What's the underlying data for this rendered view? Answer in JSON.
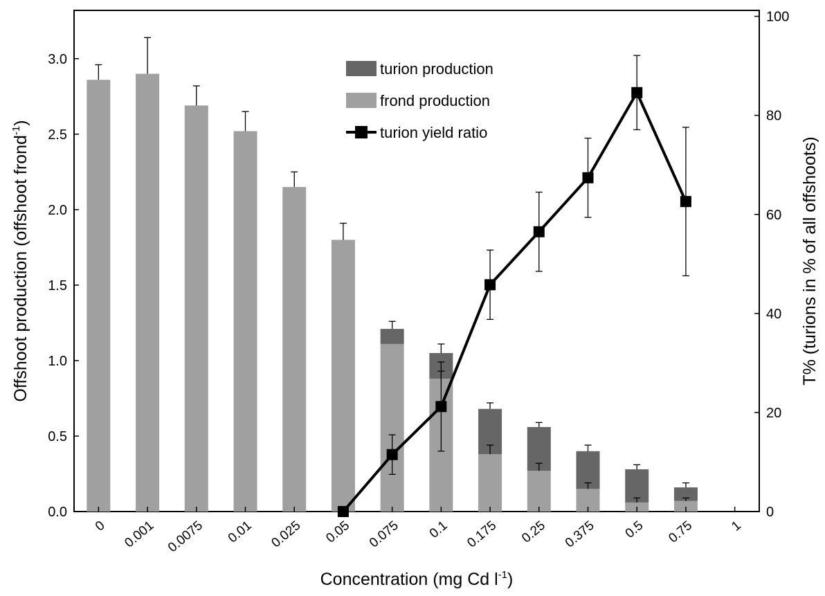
{
  "chart_data": {
    "type": "bar",
    "categories": [
      "0",
      "0.001",
      "0.0075",
      "0.01",
      "0.025",
      "0.05",
      "0.075",
      "0.1",
      "0.175",
      "0.25",
      "0.375",
      "0.5",
      "0.75",
      "1"
    ],
    "xlabel": "Concentration (mg Cd l",
    "xlabel_sup": "-1",
    "xlabel_end": ")",
    "ylabel": "Offshoot production (offshoot frond",
    "ylabel_sup": "-1",
    "ylabel_end": ")",
    "y2label": "T% (turions in % of all offshoots)",
    "ylim": [
      0,
      3.32
    ],
    "yticks": [
      0.0,
      0.5,
      1.0,
      1.5,
      2.0,
      2.5,
      3.0
    ],
    "ytick_labels": [
      "0.0",
      "0.5",
      "1.0",
      "1.5",
      "2.0",
      "2.5",
      "3.0"
    ],
    "y2lim": [
      0,
      101.2
    ],
    "y2ticks": [
      0,
      20,
      40,
      60,
      80,
      100
    ],
    "y2tick_labels": [
      "0",
      "20",
      "40",
      "60",
      "80",
      "100"
    ],
    "legend_position": "top-center",
    "grid": false,
    "series": [
      {
        "name": "frond production",
        "kind": "stacked-bar",
        "axis": "left",
        "color": "#a0a0a0",
        "values": [
          2.86,
          2.9,
          2.69,
          2.52,
          2.15,
          1.8,
          1.11,
          0.88,
          0.38,
          0.27,
          0.15,
          0.06,
          0.07,
          0
        ],
        "errors": [
          null,
          null,
          null,
          null,
          null,
          null,
          null,
          0.05,
          0.06,
          0.05,
          0.04,
          0.03,
          0.02,
          null
        ]
      },
      {
        "name": "turion production",
        "kind": "stacked-bar",
        "axis": "left",
        "color": "#666666",
        "values": [
          0,
          0,
          0,
          0,
          0,
          0,
          0.1,
          0.17,
          0.3,
          0.29,
          0.25,
          0.22,
          0.09,
          0
        ],
        "total_errors": [
          0.1,
          0.24,
          0.13,
          0.13,
          0.1,
          0.11,
          0.05,
          0.06,
          0.04,
          0.03,
          0.04,
          0.03,
          0.03,
          null
        ]
      },
      {
        "name": "turion yield ratio",
        "kind": "line",
        "axis": "right",
        "color": "#000000",
        "values": [
          null,
          null,
          null,
          null,
          null,
          0,
          11.5,
          21.2,
          45.8,
          56.5,
          67.4,
          84.6,
          62.6,
          null
        ],
        "errors": [
          null,
          null,
          null,
          null,
          null,
          null,
          4,
          9,
          7,
          8,
          8,
          7.5,
          15,
          null
        ]
      }
    ]
  }
}
